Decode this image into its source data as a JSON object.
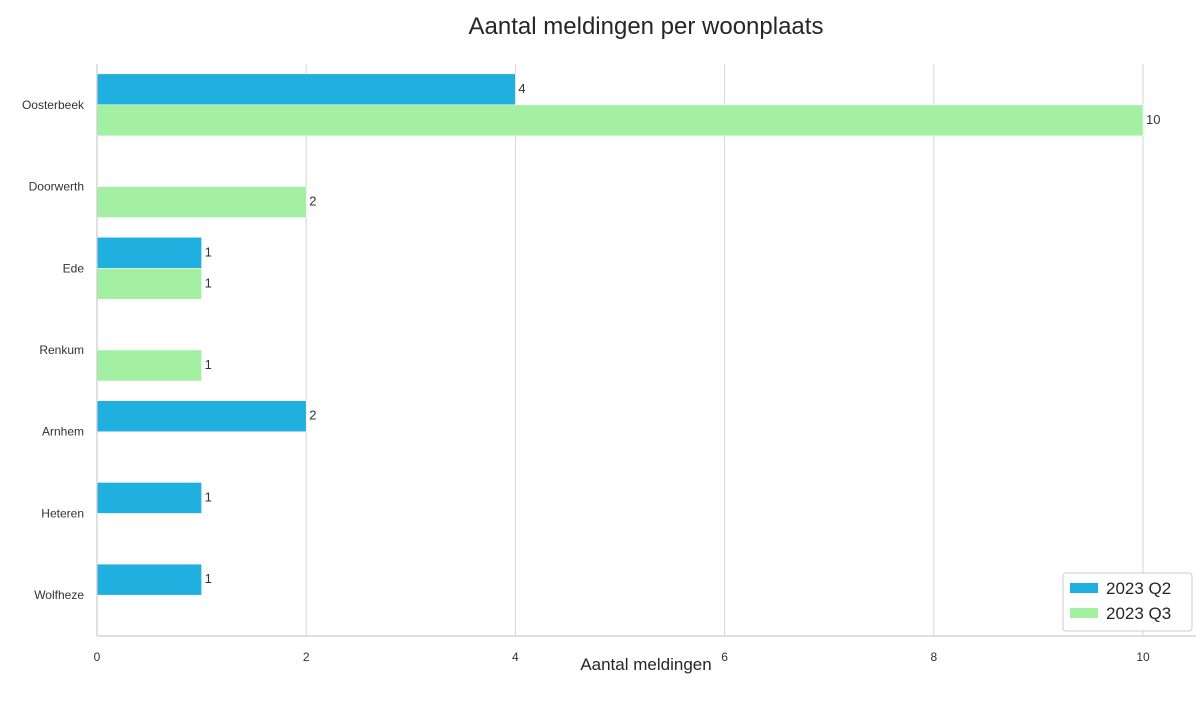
{
  "chart_data": {
    "type": "bar",
    "orientation": "horizontal",
    "title": "Aantal meldingen per woonplaats",
    "xlabel": "Aantal meldingen",
    "ylabel": "",
    "categories": [
      "Oosterbeek",
      "Doorwerth",
      "Ede",
      "Renkum",
      "Arnhem",
      "Heteren",
      "Wolfheze"
    ],
    "series": [
      {
        "name": "2023 Q2",
        "color": "#1fb0e0",
        "values": [
          4,
          null,
          1,
          null,
          2,
          1,
          1
        ]
      },
      {
        "name": "2023 Q3",
        "color": "#a3f0a3",
        "values": [
          10,
          2,
          1,
          1,
          null,
          null,
          null
        ]
      }
    ],
    "xlim": [
      0,
      10.5
    ],
    "xticks": [
      0,
      2,
      4,
      6,
      8,
      10
    ],
    "grid": "vertical",
    "legend_position": "bottom-right"
  }
}
